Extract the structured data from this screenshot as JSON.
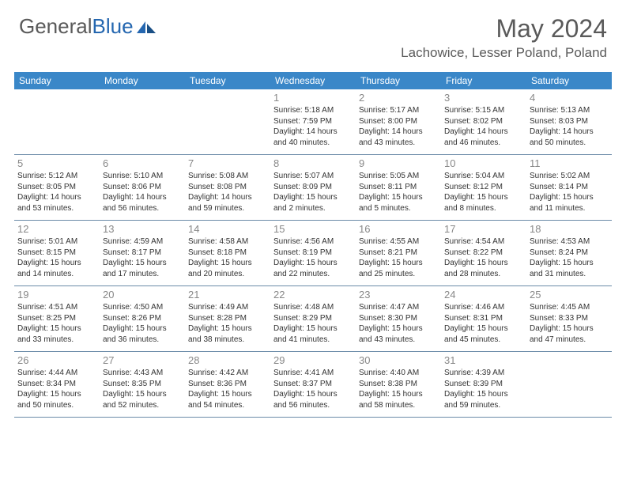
{
  "logo": {
    "text1": "General",
    "text2": "Blue"
  },
  "title": "May 2024",
  "location": "Lachowice, Lesser Poland, Poland",
  "colors": {
    "header_bg": "#3a87c8",
    "header_text": "#ffffff",
    "day_num": "#888888",
    "body_text": "#333333",
    "border": "#6b8ba8",
    "logo_gray": "#5a5a5a",
    "logo_blue": "#2567b0"
  },
  "day_names": [
    "Sunday",
    "Monday",
    "Tuesday",
    "Wednesday",
    "Thursday",
    "Friday",
    "Saturday"
  ],
  "weeks": [
    [
      {
        "n": "",
        "sr": "",
        "ss": "",
        "dl": ""
      },
      {
        "n": "",
        "sr": "",
        "ss": "",
        "dl": ""
      },
      {
        "n": "",
        "sr": "",
        "ss": "",
        "dl": ""
      },
      {
        "n": "1",
        "sr": "5:18 AM",
        "ss": "7:59 PM",
        "dl": "14 hours and 40 minutes."
      },
      {
        "n": "2",
        "sr": "5:17 AM",
        "ss": "8:00 PM",
        "dl": "14 hours and 43 minutes."
      },
      {
        "n": "3",
        "sr": "5:15 AM",
        "ss": "8:02 PM",
        "dl": "14 hours and 46 minutes."
      },
      {
        "n": "4",
        "sr": "5:13 AM",
        "ss": "8:03 PM",
        "dl": "14 hours and 50 minutes."
      }
    ],
    [
      {
        "n": "5",
        "sr": "5:12 AM",
        "ss": "8:05 PM",
        "dl": "14 hours and 53 minutes."
      },
      {
        "n": "6",
        "sr": "5:10 AM",
        "ss": "8:06 PM",
        "dl": "14 hours and 56 minutes."
      },
      {
        "n": "7",
        "sr": "5:08 AM",
        "ss": "8:08 PM",
        "dl": "14 hours and 59 minutes."
      },
      {
        "n": "8",
        "sr": "5:07 AM",
        "ss": "8:09 PM",
        "dl": "15 hours and 2 minutes."
      },
      {
        "n": "9",
        "sr": "5:05 AM",
        "ss": "8:11 PM",
        "dl": "15 hours and 5 minutes."
      },
      {
        "n": "10",
        "sr": "5:04 AM",
        "ss": "8:12 PM",
        "dl": "15 hours and 8 minutes."
      },
      {
        "n": "11",
        "sr": "5:02 AM",
        "ss": "8:14 PM",
        "dl": "15 hours and 11 minutes."
      }
    ],
    [
      {
        "n": "12",
        "sr": "5:01 AM",
        "ss": "8:15 PM",
        "dl": "15 hours and 14 minutes."
      },
      {
        "n": "13",
        "sr": "4:59 AM",
        "ss": "8:17 PM",
        "dl": "15 hours and 17 minutes."
      },
      {
        "n": "14",
        "sr": "4:58 AM",
        "ss": "8:18 PM",
        "dl": "15 hours and 20 minutes."
      },
      {
        "n": "15",
        "sr": "4:56 AM",
        "ss": "8:19 PM",
        "dl": "15 hours and 22 minutes."
      },
      {
        "n": "16",
        "sr": "4:55 AM",
        "ss": "8:21 PM",
        "dl": "15 hours and 25 minutes."
      },
      {
        "n": "17",
        "sr": "4:54 AM",
        "ss": "8:22 PM",
        "dl": "15 hours and 28 minutes."
      },
      {
        "n": "18",
        "sr": "4:53 AM",
        "ss": "8:24 PM",
        "dl": "15 hours and 31 minutes."
      }
    ],
    [
      {
        "n": "19",
        "sr": "4:51 AM",
        "ss": "8:25 PM",
        "dl": "15 hours and 33 minutes."
      },
      {
        "n": "20",
        "sr": "4:50 AM",
        "ss": "8:26 PM",
        "dl": "15 hours and 36 minutes."
      },
      {
        "n": "21",
        "sr": "4:49 AM",
        "ss": "8:28 PM",
        "dl": "15 hours and 38 minutes."
      },
      {
        "n": "22",
        "sr": "4:48 AM",
        "ss": "8:29 PM",
        "dl": "15 hours and 41 minutes."
      },
      {
        "n": "23",
        "sr": "4:47 AM",
        "ss": "8:30 PM",
        "dl": "15 hours and 43 minutes."
      },
      {
        "n": "24",
        "sr": "4:46 AM",
        "ss": "8:31 PM",
        "dl": "15 hours and 45 minutes."
      },
      {
        "n": "25",
        "sr": "4:45 AM",
        "ss": "8:33 PM",
        "dl": "15 hours and 47 minutes."
      }
    ],
    [
      {
        "n": "26",
        "sr": "4:44 AM",
        "ss": "8:34 PM",
        "dl": "15 hours and 50 minutes."
      },
      {
        "n": "27",
        "sr": "4:43 AM",
        "ss": "8:35 PM",
        "dl": "15 hours and 52 minutes."
      },
      {
        "n": "28",
        "sr": "4:42 AM",
        "ss": "8:36 PM",
        "dl": "15 hours and 54 minutes."
      },
      {
        "n": "29",
        "sr": "4:41 AM",
        "ss": "8:37 PM",
        "dl": "15 hours and 56 minutes."
      },
      {
        "n": "30",
        "sr": "4:40 AM",
        "ss": "8:38 PM",
        "dl": "15 hours and 58 minutes."
      },
      {
        "n": "31",
        "sr": "4:39 AM",
        "ss": "8:39 PM",
        "dl": "15 hours and 59 minutes."
      },
      {
        "n": "",
        "sr": "",
        "ss": "",
        "dl": ""
      }
    ]
  ],
  "labels": {
    "sunrise": "Sunrise:",
    "sunset": "Sunset:",
    "daylight": "Daylight:"
  }
}
